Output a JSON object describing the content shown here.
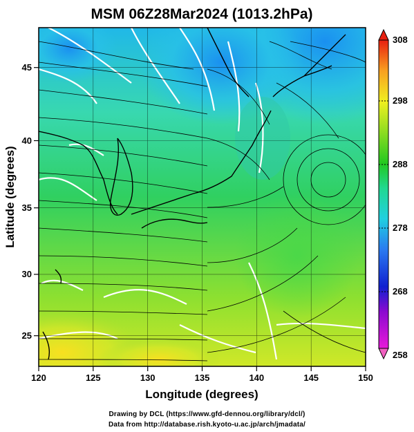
{
  "title": "MSM 06Z28Mar2024 (1013.2hPa)",
  "x_axis": {
    "label": "Longitude (degrees)",
    "ticks": [
      "120",
      "125",
      "130",
      "135",
      "140",
      "145",
      "150"
    ]
  },
  "y_axis": {
    "label": "Latitude  (degrees)",
    "ticks": [
      "25",
      "30",
      "35",
      "40",
      "45"
    ]
  },
  "colorbar": {
    "ticks": [
      "308",
      "298",
      "288",
      "278",
      "268",
      "258"
    ]
  },
  "credits": {
    "line1": "Drawing by DCL (https://www.gfd-dennou.org/library/dcl/)",
    "line2": "Data from http://database.rish.kyoto-u.ac.jp/arch/jmadata/"
  },
  "chart_data": {
    "type": "heatmap",
    "variable": "temperature with wind streamlines",
    "xlim": [
      120,
      150
    ],
    "ylim": [
      22.4,
      47.6
    ],
    "colorbar_range": [
      258,
      308
    ],
    "grid": true
  }
}
